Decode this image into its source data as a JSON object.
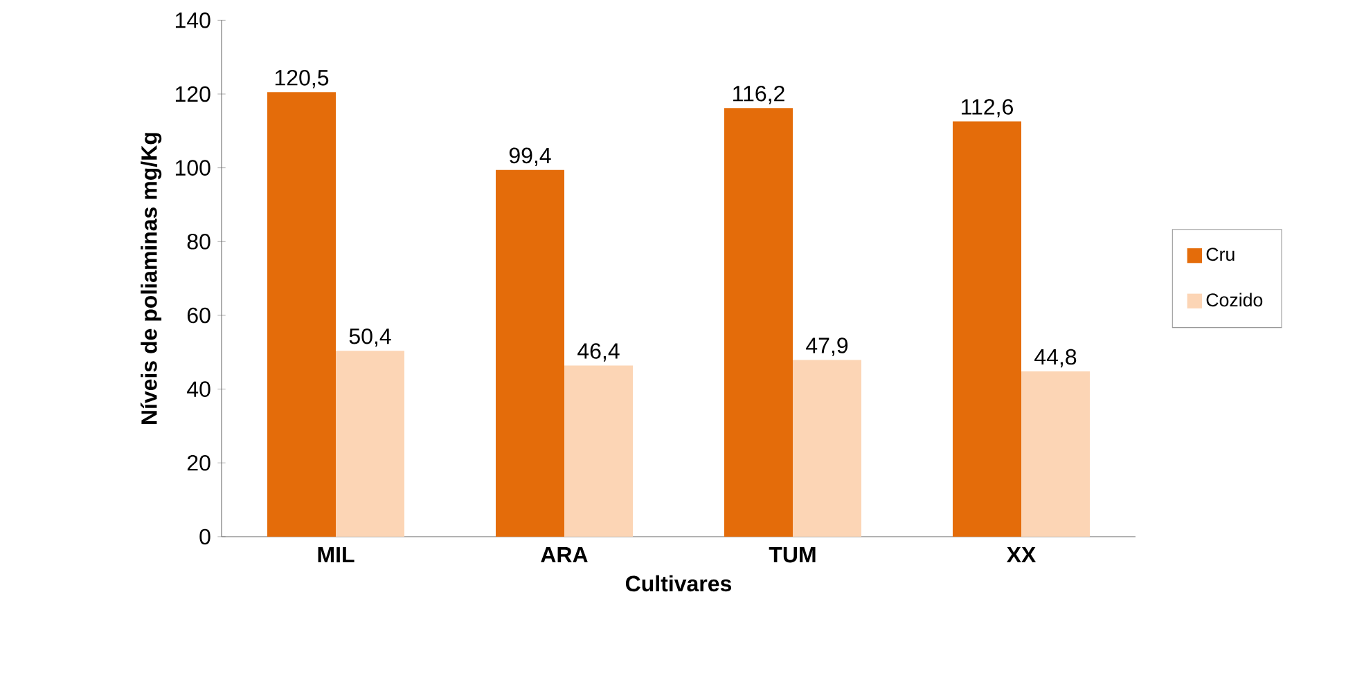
{
  "chart_data": {
    "type": "bar",
    "xlabel": "Cultivares",
    "ylabel": "Níveis de poliaminas  mg/Kg",
    "categories": [
      "MIL",
      "ARA",
      "TUM",
      "XX"
    ],
    "series": [
      {
        "name": "Cru",
        "color": "#e46c0a",
        "values": [
          120.5,
          99.4,
          116.2,
          112.6
        ],
        "value_labels": [
          "120,5",
          "99,4",
          "116,2",
          "112,6"
        ]
      },
      {
        "name": "Cozido",
        "color": "#fcd5b5",
        "values": [
          50.4,
          46.4,
          47.9,
          44.8
        ],
        "value_labels": [
          "50,4",
          "46,4",
          "47,9",
          "44,8"
        ]
      }
    ],
    "ylim": [
      0,
      140
    ],
    "yticks": [
      0,
      20,
      40,
      60,
      80,
      100,
      120,
      140
    ],
    "legend": "right"
  }
}
